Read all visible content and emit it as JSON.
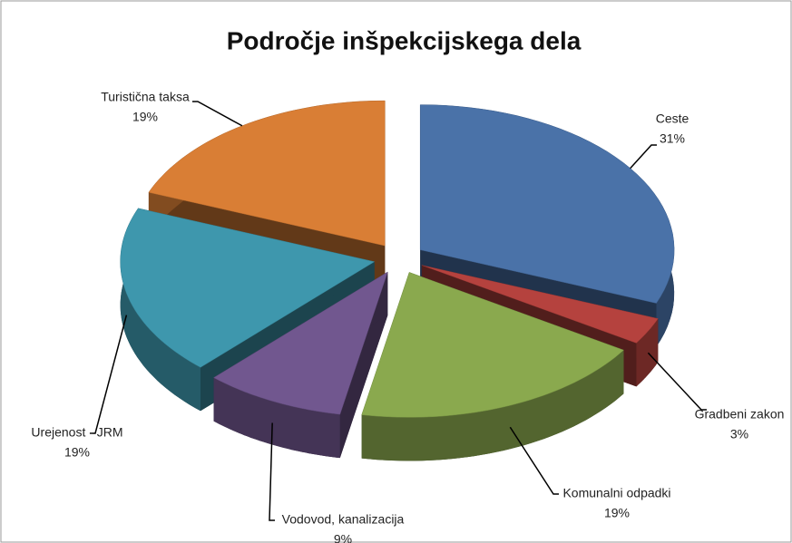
{
  "chart_data": {
    "type": "pie3d",
    "title": "Področje inšpekcijskega dela",
    "categories": [
      "Ceste",
      "Gradbeni zakon",
      "Komunalni odpadki",
      "Vodovod, kanalizacija",
      "Urejenost - JRM",
      "Turistična taksa"
    ],
    "values": [
      31,
      3,
      19,
      9,
      19,
      19
    ],
    "value_labels": [
      "31%",
      "3%",
      "19%",
      "9%",
      "19%",
      "19%"
    ],
    "colors": [
      "#4a72a8",
      "#b5423e",
      "#8aa94e",
      "#71578f",
      "#3e97ad",
      "#d97e35"
    ]
  }
}
